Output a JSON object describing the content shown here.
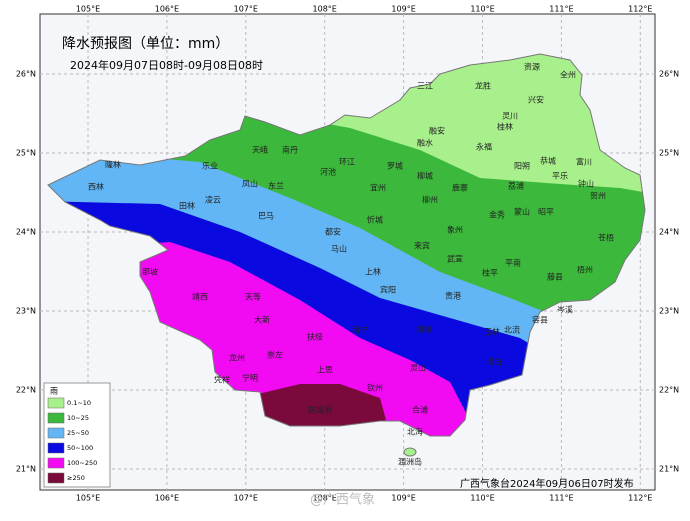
{
  "header": {
    "title": "降水预报图（单位：mm）",
    "subtitle": "2024年09月07日08时-09月08日08时"
  },
  "lon_labels": [
    "105°E",
    "106°E",
    "107°E",
    "108°E",
    "109°E",
    "110°E",
    "111°E",
    "112°E"
  ],
  "lat_labels": [
    "26°N",
    "25°N",
    "24°N",
    "23°N",
    "22°N",
    "21°N"
  ],
  "legend": {
    "title": "雨",
    "items": [
      {
        "label": "0.1~10",
        "color": "#a8f08c"
      },
      {
        "label": "10~25",
        "color": "#3cb83c"
      },
      {
        "label": "25~50",
        "color": "#62b6f5"
      },
      {
        "label": "50~100",
        "color": "#0a0ae0"
      },
      {
        "label": "100~250",
        "color": "#f20af2"
      },
      {
        "label": "≥250",
        "color": "#7a0a3c"
      }
    ]
  },
  "cities": [
    "资源",
    "全州",
    "三江",
    "龙胜",
    "兴安",
    "灵川",
    "桂林",
    "融安",
    "融水",
    "永福",
    "天峨",
    "南丹",
    "环江",
    "罗城",
    "阳朔",
    "恭城",
    "富川",
    "乐业",
    "河池",
    "柳城",
    "平乐",
    "隆林",
    "西林",
    "凤山",
    "东兰",
    "宜州",
    "鹿寨",
    "荔浦",
    "钟山",
    "贺州",
    "田林",
    "凌云",
    "柳州",
    "象州",
    "金秀",
    "蒙山",
    "昭平",
    "巴马",
    "忻城",
    "都安",
    "马山",
    "来宾",
    "武宣",
    "平南",
    "苍梧",
    "藤县",
    "梧州",
    "上林",
    "宾阳",
    "贵港",
    "桂平",
    "那坡",
    "靖西",
    "天等",
    "岑溪",
    "容县",
    "北流",
    "玉林",
    "大新",
    "横州",
    "扶绥",
    "崇左",
    "南宁",
    "龙州",
    "凭祥",
    "宁明",
    "上思",
    "灵山",
    "博白",
    "钦州",
    "防城港",
    "合浦",
    "北海",
    "涠洲岛"
  ],
  "issuer": "广西气象台2024年09月06日07时发布",
  "watermark": "@广西气象"
}
